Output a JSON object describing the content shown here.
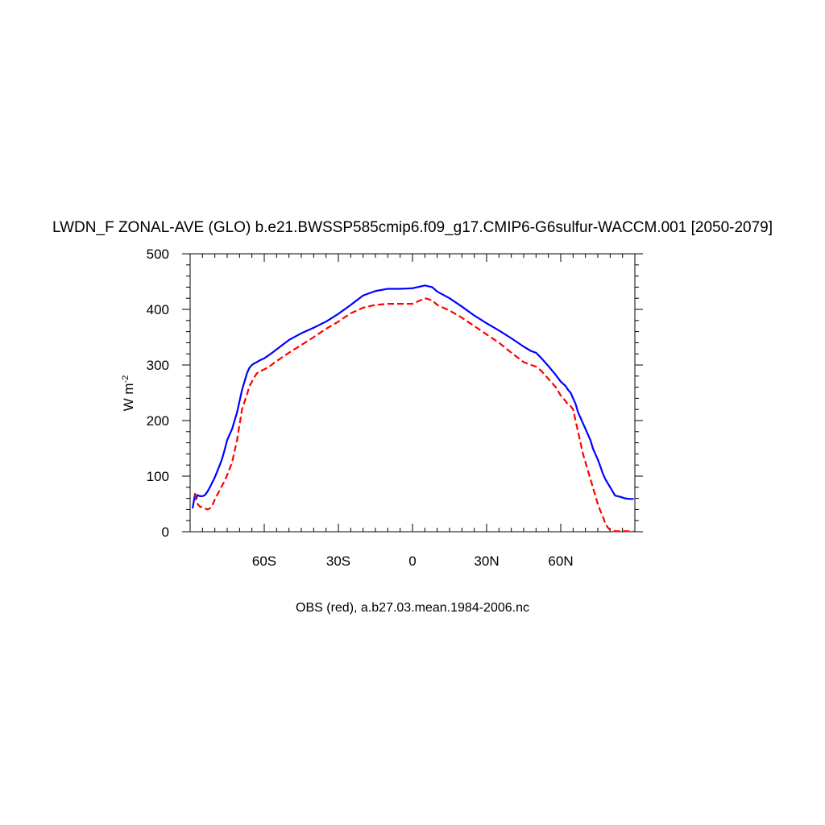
{
  "chart_data": {
    "type": "line",
    "title": "LWDN_F ZONAL-AVE (GLO) b.e21.BWSSP585cmip6.f09_g17.CMIP6-G6sulfur-WACCM.001 [2050-2079]",
    "ylabel_main": "W m",
    "ylabel_sup": "-2",
    "xlabel": "",
    "caption": "OBS (red), a.b27.03.mean.1984-2006.nc",
    "xlim": [
      -90,
      90
    ],
    "ylim": [
      0,
      500
    ],
    "x_major_ticks": [
      -60,
      -30,
      0,
      30,
      60
    ],
    "x_tick_labels": [
      "60S",
      "30S",
      "0",
      "30N",
      "60N"
    ],
    "y_major_ticks": [
      0,
      100,
      200,
      300,
      400,
      500
    ],
    "y_tick_labels": [
      "0",
      "100",
      "200",
      "300",
      "400",
      "500"
    ],
    "grid": false,
    "series": [
      {
        "color": "#0000ff",
        "dash": "solid",
        "x": [
          -89,
          -88.5,
          -88,
          -87.5,
          -87,
          -86,
          -85,
          -84,
          -83,
          -82,
          -80,
          -78,
          -77,
          -76,
          -75,
          -73,
          -71,
          -69,
          -67,
          -66,
          -65,
          -64,
          -63,
          -62,
          -61,
          -60,
          -58,
          -55,
          -50,
          -45,
          -40,
          -35,
          -30,
          -25,
          -20,
          -15,
          -10,
          -5,
          0,
          2,
          4,
          5,
          6,
          8,
          10,
          15,
          20,
          25,
          30,
          35,
          40,
          45,
          48,
          50,
          52,
          55,
          58,
          60,
          62,
          63,
          64,
          65,
          66,
          67,
          68,
          69,
          70,
          71,
          72,
          73,
          74,
          75,
          76,
          77,
          78,
          80,
          82,
          84,
          86,
          88,
          89.5
        ],
        "y": [
          42,
          55,
          68,
          60,
          66,
          64,
          64,
          66,
          72,
          80,
          98,
          120,
          132,
          148,
          165,
          185,
          215,
          255,
          285,
          295,
          300,
          303,
          305,
          308,
          310,
          312,
          318,
          328,
          345,
          357,
          367,
          378,
          392,
          408,
          425,
          433,
          437,
          437,
          438,
          440,
          442,
          443,
          442,
          440,
          432,
          420,
          405,
          389,
          375,
          362,
          348,
          333,
          325,
          322,
          313,
          298,
          282,
          270,
          262,
          255,
          250,
          240,
          230,
          215,
          205,
          195,
          185,
          175,
          165,
          150,
          140,
          130,
          118,
          105,
          95,
          80,
          65,
          63,
          60,
          59,
          59
        ]
      },
      {
        "color": "#ff0000",
        "dash": "dashed",
        "x": [
          -88,
          -87.5,
          -87,
          -86,
          -85,
          -84,
          -83,
          -82,
          -81,
          -80,
          -78,
          -76,
          -75,
          -73,
          -71,
          -69,
          -67,
          -66,
          -65,
          -64,
          -63,
          -62,
          -61,
          -60,
          -58,
          -55,
          -50,
          -45,
          -40,
          -35,
          -30,
          -25,
          -20,
          -15,
          -10,
          -5,
          0,
          2,
          4,
          5,
          6,
          8,
          10,
          15,
          20,
          25,
          30,
          35,
          40,
          45,
          48,
          50,
          52,
          55,
          58,
          60,
          62,
          63,
          64,
          65,
          66,
          67,
          68,
          69,
          70,
          71,
          72,
          73,
          74,
          75,
          76,
          77,
          78,
          79,
          80,
          81,
          82,
          84,
          86,
          88,
          89.5
        ],
        "y": [
          68,
          55,
          50,
          45,
          44,
          42,
          40,
          42,
          48,
          58,
          75,
          92,
          102,
          125,
          165,
          220,
          247,
          262,
          270,
          278,
          285,
          288,
          290,
          292,
          297,
          307,
          322,
          336,
          350,
          365,
          378,
          393,
          403,
          408,
          410,
          410,
          410,
          414,
          418,
          420,
          419,
          416,
          408,
          398,
          385,
          370,
          355,
          340,
          322,
          305,
          300,
          297,
          290,
          275,
          260,
          245,
          235,
          228,
          226,
          220,
          200,
          180,
          160,
          140,
          125,
          110,
          95,
          80,
          65,
          50,
          38,
          28,
          15,
          8,
          3,
          2,
          1,
          1,
          1,
          1,
          1
        ]
      }
    ]
  }
}
